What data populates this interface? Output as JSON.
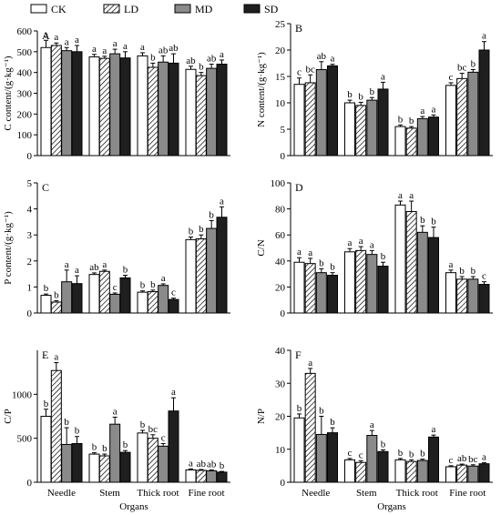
{
  "legend": [
    {
      "label": "CK",
      "key": "CK"
    },
    {
      "label": "LD",
      "key": "LD"
    },
    {
      "label": "MD",
      "key": "MD"
    },
    {
      "label": "SD",
      "key": "SD"
    }
  ],
  "series_styles": {
    "CK": {
      "fill": "#ffffff",
      "pattern": "none"
    },
    "LD": {
      "fill": "#ffffff",
      "pattern": "hatch"
    },
    "MD": {
      "fill": "#8a8a8a",
      "pattern": "none"
    },
    "SD": {
      "fill": "#1f1f1f",
      "pattern": "none"
    }
  },
  "chart_data": [
    {
      "type": "bar",
      "panel": "A",
      "ylabel": "C content/(g·kg⁻¹)",
      "ylim": [
        0,
        600
      ],
      "yticks": [
        0,
        100,
        200,
        300,
        400,
        500,
        600
      ],
      "categories": [
        "Needle",
        "Stem",
        "Thick root",
        "Fine root"
      ],
      "xlabel": "",
      "show_xticks": false,
      "series": [
        {
          "name": "CK",
          "values": [
            520,
            475,
            480,
            415
          ],
          "errors": [
            35,
            12,
            15,
            15
          ],
          "letters": [
            "a",
            "a",
            "a",
            "ab"
          ]
        },
        {
          "name": "LD",
          "values": [
            530,
            468,
            425,
            385
          ],
          "errors": [
            12,
            10,
            20,
            15
          ],
          "letters": [
            "a",
            "a",
            "b",
            "b"
          ]
        },
        {
          "name": "MD",
          "values": [
            505,
            490,
            450,
            420
          ],
          "errors": [
            15,
            22,
            30,
            20
          ],
          "letters": [
            "a",
            "a",
            "ab",
            "ab"
          ]
        },
        {
          "name": "SD",
          "values": [
            500,
            470,
            445,
            440
          ],
          "errors": [
            30,
            30,
            45,
            20
          ],
          "letters": [
            "a",
            "a",
            "ab",
            "a"
          ]
        }
      ]
    },
    {
      "type": "bar",
      "panel": "B",
      "ylabel": "N content/(g·kg⁻¹)",
      "ylim": [
        0,
        25
      ],
      "yticks": [
        0,
        5,
        10,
        15,
        20,
        25
      ],
      "categories": [
        "Needle",
        "Stem",
        "Thick root",
        "Fine root"
      ],
      "xlabel": "",
      "show_xticks": false,
      "series": [
        {
          "name": "CK",
          "values": [
            13.5,
            10.0,
            5.5,
            13.3
          ],
          "errors": [
            1.2,
            0.5,
            0.3,
            0.5
          ],
          "letters": [
            "c",
            "b",
            "b",
            "c"
          ]
        },
        {
          "name": "LD",
          "values": [
            13.8,
            9.5,
            5.2,
            14.6
          ],
          "errors": [
            1.5,
            0.6,
            0.3,
            1.0
          ],
          "letters": [
            "bc",
            "b",
            "b",
            "bc"
          ]
        },
        {
          "name": "MD",
          "values": [
            16.3,
            10.5,
            7.0,
            15.8
          ],
          "errors": [
            1.5,
            0.5,
            0.4,
            0.5
          ],
          "letters": [
            "ab",
            "b",
            "a",
            "b"
          ]
        },
        {
          "name": "SD",
          "values": [
            17.0,
            12.6,
            7.3,
            20.0
          ],
          "errors": [
            0.3,
            1.3,
            0.4,
            1.6
          ],
          "letters": [
            "a",
            "a",
            "a",
            "a"
          ]
        }
      ]
    },
    {
      "type": "bar",
      "panel": "C",
      "ylabel": "P content/(g·kg⁻¹)",
      "ylim": [
        0,
        5
      ],
      "yticks": [
        0,
        1,
        2,
        3,
        4,
        5
      ],
      "categories": [
        "Needle",
        "Stem",
        "Thick root",
        "Fine root"
      ],
      "xlabel": "",
      "show_xticks": false,
      "series": [
        {
          "name": "CK",
          "values": [
            0.68,
            1.48,
            0.8,
            2.82
          ],
          "errors": [
            0.05,
            0.06,
            0.05,
            0.1
          ],
          "letters": [
            "b",
            "ab",
            "b",
            "b"
          ]
        },
        {
          "name": "LD",
          "values": [
            0.42,
            1.6,
            0.82,
            2.85
          ],
          "errors": [
            0.05,
            0.05,
            0.06,
            0.15
          ],
          "letters": [
            "b",
            "a",
            "b",
            "b"
          ]
        },
        {
          "name": "MD",
          "values": [
            1.2,
            0.72,
            1.06,
            3.25
          ],
          "errors": [
            0.45,
            0.05,
            0.06,
            0.3
          ],
          "letters": [
            "a",
            "c",
            "a",
            "b"
          ]
        },
        {
          "name": "SD",
          "values": [
            1.13,
            1.35,
            0.52,
            3.68
          ],
          "errors": [
            0.3,
            0.1,
            0.05,
            0.4
          ],
          "letters": [
            "a",
            "b",
            "c",
            "a"
          ]
        }
      ]
    },
    {
      "type": "bar",
      "panel": "D",
      "ylabel": "C/N",
      "ylim": [
        0,
        100
      ],
      "yticks": [
        0,
        20,
        40,
        60,
        80,
        100
      ],
      "categories": [
        "Needle",
        "Stem",
        "Thick root",
        "Fine root"
      ],
      "xlabel": "",
      "show_xticks": false,
      "series": [
        {
          "name": "CK",
          "values": [
            39,
            47,
            83,
            31
          ],
          "errors": [
            3.5,
            2.5,
            3,
            2
          ],
          "letters": [
            "a",
            "a",
            "a",
            "a"
          ]
        },
        {
          "name": "LD",
          "values": [
            38,
            48,
            78,
            26
          ],
          "errors": [
            4,
            3,
            8,
            2
          ],
          "letters": [
            "a",
            "a",
            "a",
            "b"
          ]
        },
        {
          "name": "MD",
          "values": [
            31,
            45,
            62,
            26
          ],
          "errors": [
            3,
            3,
            5,
            2
          ],
          "letters": [
            "b",
            "a",
            "b",
            "b"
          ]
        },
        {
          "name": "SD",
          "values": [
            29,
            36,
            58,
            22
          ],
          "errors": [
            2,
            3,
            8,
            2
          ],
          "letters": [
            "b",
            "b",
            "b",
            "c"
          ]
        }
      ]
    },
    {
      "type": "bar",
      "panel": "E",
      "ylabel": "C/P",
      "ylim": [
        0,
        1500
      ],
      "yticks": [
        0,
        500,
        1000
      ],
      "categories": [
        "Needle",
        "Stem",
        "Thick root",
        "Fine root"
      ],
      "xlabel": "Organs",
      "show_xticks": true,
      "series": [
        {
          "name": "CK",
          "values": [
            750,
            320,
            560,
            140
          ],
          "errors": [
            80,
            15,
            30,
            12
          ],
          "letters": [
            "b",
            "b",
            "b",
            "a"
          ]
        },
        {
          "name": "LD",
          "values": [
            1270,
            300,
            500,
            135
          ],
          "errors": [
            90,
            20,
            40,
            10
          ],
          "letters": [
            "a",
            "b",
            "bc",
            "ab"
          ]
        },
        {
          "name": "MD",
          "values": [
            430,
            660,
            410,
            130
          ],
          "errors": [
            190,
            80,
            30,
            10
          ],
          "letters": [
            "b",
            "a",
            "c",
            "ab"
          ]
        },
        {
          "name": "SD",
          "values": [
            440,
            340,
            810,
            115
          ],
          "errors": [
            80,
            20,
            150,
            8
          ],
          "letters": [
            "b",
            "b",
            "a",
            "b"
          ]
        }
      ]
    },
    {
      "type": "bar",
      "panel": "F",
      "ylabel": "N/P",
      "ylim": [
        0,
        40
      ],
      "yticks": [
        0,
        10,
        20,
        30,
        40
      ],
      "categories": [
        "Needle",
        "Stem",
        "Thick root",
        "Fine root"
      ],
      "xlabel": "Organs",
      "show_xticks": true,
      "series": [
        {
          "name": "CK",
          "values": [
            19.5,
            6.8,
            6.8,
            4.7
          ],
          "errors": [
            1.2,
            0.4,
            0.4,
            0.3
          ],
          "letters": [
            "b",
            "c",
            "b",
            "c"
          ]
        },
        {
          "name": "LD",
          "values": [
            33.0,
            6.0,
            6.3,
            5.2
          ],
          "errors": [
            1.5,
            0.5,
            0.5,
            0.3
          ],
          "letters": [
            "a",
            "c",
            "b",
            "ab"
          ]
        },
        {
          "name": "MD",
          "values": [
            14.5,
            14.2,
            6.6,
            4.9
          ],
          "errors": [
            5.5,
            1.5,
            0.4,
            0.4
          ],
          "letters": [
            "b",
            "a",
            "b",
            "bc"
          ]
        },
        {
          "name": "SD",
          "values": [
            15.0,
            9.3,
            13.7,
            5.6
          ],
          "errors": [
            1.5,
            0.5,
            0.6,
            0.3
          ],
          "letters": [
            "b",
            "b",
            "a",
            "a"
          ]
        }
      ]
    }
  ]
}
